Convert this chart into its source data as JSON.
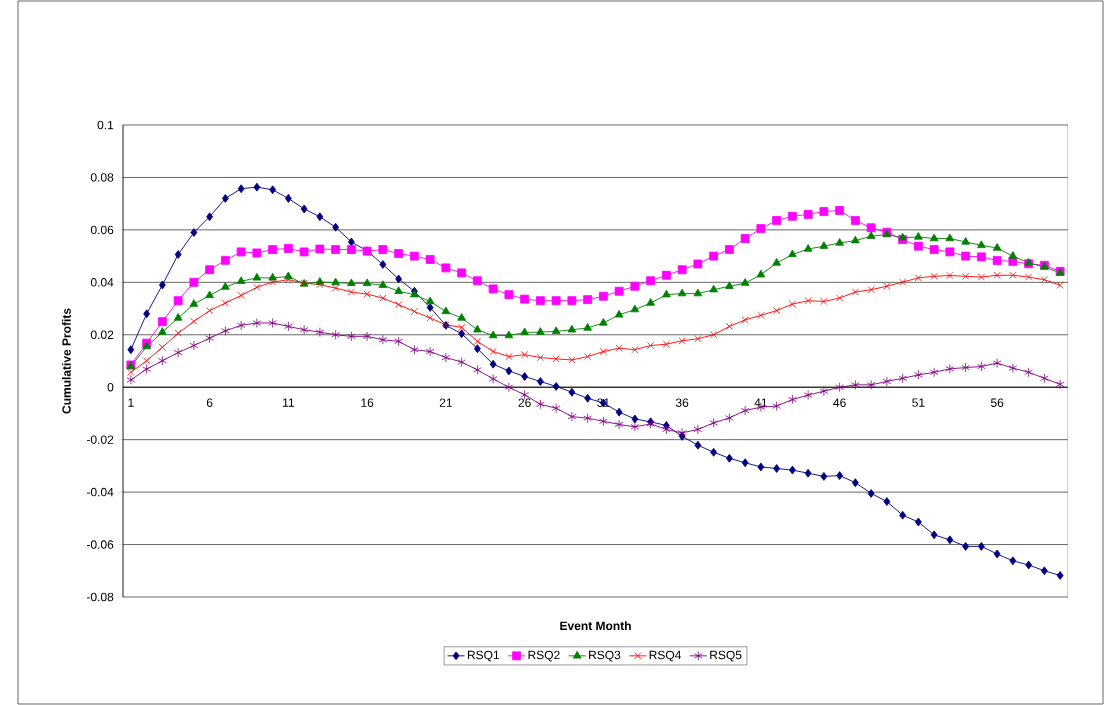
{
  "chart_data": {
    "type": "line",
    "xlabel": "Event Month",
    "ylabel": "Cumulative Profits",
    "categories": [
      "1",
      null,
      null,
      null,
      null,
      "6",
      null,
      null,
      null,
      null,
      "11",
      null,
      null,
      null,
      null,
      "16",
      null,
      null,
      null,
      null,
      "21",
      null,
      null,
      null,
      null,
      "26",
      null,
      null,
      null,
      null,
      "31",
      null,
      null,
      null,
      null,
      "36",
      null,
      null,
      null,
      null,
      "41",
      null,
      null,
      null,
      null,
      "46",
      null,
      null,
      null,
      null,
      "51",
      null,
      null,
      null,
      null,
      "56",
      null,
      null,
      null,
      null
    ],
    "ylim": [
      -0.08,
      0.1
    ],
    "yticks": [
      -0.08,
      -0.06,
      -0.04,
      -0.02,
      0,
      0.02,
      0.04,
      0.06,
      0.08,
      0.1
    ],
    "grid": "y",
    "legend": "bottom",
    "series": [
      {
        "name": "RSQ1",
        "color": "#000080",
        "marker": "diamond",
        "values": [
          0.0143,
          0.028,
          0.039,
          0.0506,
          0.059,
          0.065,
          0.072,
          0.0757,
          0.0763,
          0.0753,
          0.072,
          0.068,
          0.065,
          0.061,
          0.0554,
          0.052,
          0.0468,
          0.0413,
          0.0366,
          0.0304,
          0.0236,
          0.0204,
          0.0147,
          0.0088,
          0.0062,
          0.0041,
          0.0022,
          0.0003,
          -0.0019,
          -0.0042,
          -0.006,
          -0.0095,
          -0.0121,
          -0.0132,
          -0.0146,
          -0.0187,
          -0.0221,
          -0.0248,
          -0.0271,
          -0.0288,
          -0.0304,
          -0.031,
          -0.0316,
          -0.0328,
          -0.034,
          -0.0337,
          -0.0364,
          -0.0405,
          -0.0436,
          -0.0488,
          -0.0514,
          -0.0563,
          -0.0582,
          -0.0607,
          -0.0607,
          -0.0636,
          -0.0662,
          -0.0678,
          -0.07,
          -0.0718
        ]
      },
      {
        "name": "RSQ2",
        "color": "#ff00ff",
        "marker": "square",
        "values": [
          0.0085,
          0.0168,
          0.025,
          0.033,
          0.04,
          0.0448,
          0.0484,
          0.0516,
          0.0512,
          0.0525,
          0.0529,
          0.0516,
          0.0527,
          0.0525,
          0.0525,
          0.0519,
          0.0525,
          0.051,
          0.05,
          0.0487,
          0.0455,
          0.0436,
          0.0406,
          0.0375,
          0.0353,
          0.0336,
          0.033,
          0.033,
          0.033,
          0.0334,
          0.0347,
          0.0366,
          0.0385,
          0.0406,
          0.0427,
          0.0448,
          0.047,
          0.05,
          0.0525,
          0.0567,
          0.0605,
          0.0636,
          0.0652,
          0.0659,
          0.067,
          0.0674,
          0.0636,
          0.0608,
          0.0591,
          0.0563,
          0.0538,
          0.0525,
          0.0516,
          0.05,
          0.0497,
          0.0483,
          0.048,
          0.0471,
          0.0465,
          0.0442
        ]
      },
      {
        "name": "RSQ3",
        "color": "#008000",
        "marker": "triangle",
        "values": [
          0.0079,
          0.0155,
          0.021,
          0.0264,
          0.0317,
          0.035,
          0.0382,
          0.0404,
          0.0417,
          0.0417,
          0.0422,
          0.0394,
          0.0401,
          0.0399,
          0.0396,
          0.0396,
          0.0389,
          0.0366,
          0.0353,
          0.0327,
          0.0289,
          0.0264,
          0.0219,
          0.0197,
          0.0197,
          0.0209,
          0.021,
          0.0213,
          0.0219,
          0.0226,
          0.0245,
          0.0276,
          0.0296,
          0.0321,
          0.0353,
          0.0357,
          0.0357,
          0.0372,
          0.0385,
          0.0397,
          0.0429,
          0.0474,
          0.0506,
          0.0527,
          0.0538,
          0.055,
          0.0559,
          0.0576,
          0.0582,
          0.057,
          0.0573,
          0.0567,
          0.0567,
          0.0554,
          0.0541,
          0.0531,
          0.05,
          0.0474,
          0.0459,
          0.0436
        ]
      },
      {
        "name": "RSQ4",
        "color": "#ff0000",
        "marker": "cross",
        "values": [
          0.0057,
          0.0101,
          0.0152,
          0.0206,
          0.0251,
          0.0292,
          0.0321,
          0.035,
          0.0381,
          0.0401,
          0.041,
          0.0397,
          0.0391,
          0.0378,
          0.0363,
          0.0355,
          0.034,
          0.0315,
          0.0289,
          0.0264,
          0.0238,
          0.0228,
          0.0175,
          0.0136,
          0.0117,
          0.0124,
          0.0113,
          0.0108,
          0.0104,
          0.0117,
          0.0136,
          0.0149,
          0.0143,
          0.0159,
          0.0164,
          0.0177,
          0.0185,
          0.02,
          0.0232,
          0.0257,
          0.0274,
          0.0292,
          0.0317,
          0.033,
          0.0327,
          0.034,
          0.0363,
          0.0372,
          0.0385,
          0.0401,
          0.0417,
          0.0423,
          0.0426,
          0.0423,
          0.042,
          0.0427,
          0.0427,
          0.042,
          0.041,
          0.0389
        ]
      },
      {
        "name": "RSQ5",
        "color": "#800080",
        "marker": "cross",
        "values": [
          0.0028,
          0.0069,
          0.0101,
          0.0132,
          0.0159,
          0.0187,
          0.0215,
          0.0236,
          0.0245,
          0.0245,
          0.0232,
          0.0219,
          0.021,
          0.02,
          0.0194,
          0.0194,
          0.0181,
          0.0175,
          0.0143,
          0.0136,
          0.0113,
          0.0096,
          0.0066,
          0.0032,
          0,
          -0.0029,
          -0.0065,
          -0.008,
          -0.0112,
          -0.0118,
          -0.013,
          -0.0142,
          -0.0151,
          -0.014,
          -0.0161,
          -0.0174,
          -0.0161,
          -0.0136,
          -0.0117,
          -0.0089,
          -0.0076,
          -0.0072,
          -0.0047,
          -0.003,
          -0.0015,
          0,
          0.0009,
          0.0009,
          0.0022,
          0.0034,
          0.0047,
          0.0057,
          0.007,
          0.0075,
          0.0079,
          0.0092,
          0.0073,
          0.0057,
          0.0034,
          0.0011
        ]
      }
    ]
  }
}
